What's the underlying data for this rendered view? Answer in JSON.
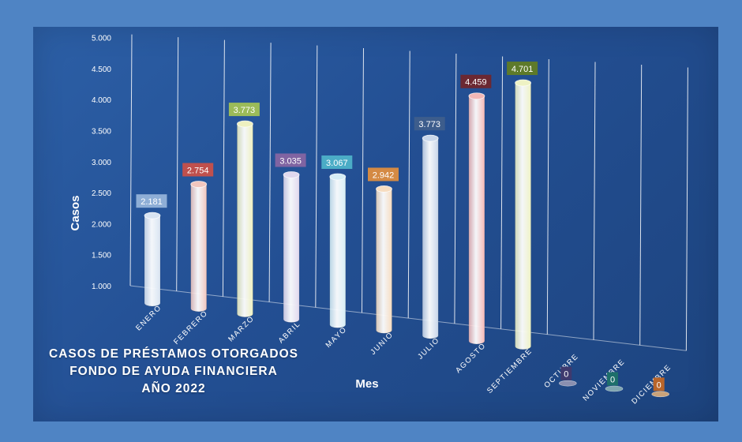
{
  "chart_data": {
    "type": "bar",
    "title_lines": [
      "CASOS DE PRÉSTAMOS OTORGADOS",
      "FONDO DE AYUDA FINANCIERA",
      "AÑO 2022"
    ],
    "xlabel": "Mes",
    "ylabel": "Casos",
    "ylim": [
      1000,
      5000
    ],
    "y_ticks": [
      "1.000",
      "1.500",
      "2.000",
      "2.500",
      "3.000",
      "3.500",
      "4.000",
      "4.500",
      "5.000"
    ],
    "categories": [
      "ENERO",
      "FEBRERO",
      "MARZO",
      "ABRIL",
      "MAYO",
      "JUNIO",
      "JULIO",
      "AGOSTO",
      "SEPTIEMBRE",
      "OCTUBRE",
      "NOVIEMBRE",
      "DICIEMBRE"
    ],
    "values": [
      2181,
      2754,
      3773,
      3035,
      3067,
      2942,
      3773,
      4459,
      4701,
      0,
      0,
      0
    ],
    "data_labels": [
      "2.181",
      "2.754",
      "3.773",
      "3.035",
      "3.067",
      "2.942",
      "3.773",
      "4.459",
      "4.701",
      "0",
      "0",
      "0"
    ],
    "bar_colors": [
      "#d8e4f2",
      "#f2c6be",
      "#eef0c0",
      "#e0d8ee",
      "#d6eef6",
      "#f6dcc0",
      "#c8d6ea",
      "#f4b8b6",
      "#eef2c4",
      "#8a8fb0",
      "#7fa6b0",
      "#c9a27a"
    ],
    "label_colors": [
      "#8eaed6",
      "#c0504d",
      "#9bbb59",
      "#8064a2",
      "#4bacc6",
      "#d48a44",
      "#3d5d8c",
      "#6b2832",
      "#5e7a2a",
      "#3f3a6e",
      "#1d6f6a",
      "#b8652a"
    ],
    "grid": true,
    "legend": "none"
  }
}
